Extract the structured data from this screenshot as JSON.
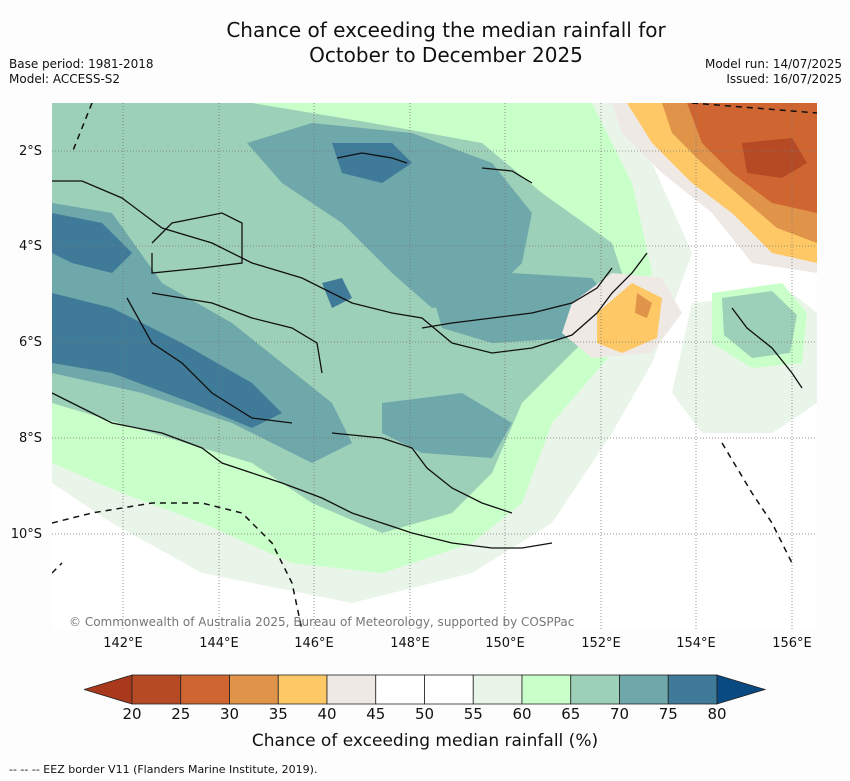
{
  "title_line1": "Chance of exceeding the median rainfall for",
  "title_line2": "October to December 2025",
  "base_period": "Base period: 1981-2018",
  "model": "Model: ACCESS-S2",
  "model_run": "Model run: 14/07/2025",
  "issued": "Issued: 16/07/2025",
  "lat_labels": [
    "2°S",
    "4°S",
    "6°S",
    "8°S",
    "10°S"
  ],
  "lon_labels": [
    "142°E",
    "144°E",
    "146°E",
    "148°E",
    "150°E",
    "152°E",
    "154°E",
    "156°E"
  ],
  "copyright": "© Commonwealth of Australia 2025, Bureau of Meteorology, supported by COSPPac",
  "colorbar": {
    "ticks": [
      "20",
      "25",
      "30",
      "35",
      "40",
      "45",
      "50",
      "55",
      "60",
      "65",
      "70",
      "75",
      "80"
    ],
    "label": "Chance of exceeding median rainfall (%)",
    "colors": [
      "#a8391d",
      "#b54a25",
      "#cf6531",
      "#e0944a",
      "#fdc865",
      "#efe9e6",
      "#ffffff",
      "#ffffff",
      "#e9f5e9",
      "#c9ffc8",
      "#9dd0b8",
      "#6ea8aa",
      "#3f7b98",
      "#0a4a82"
    ]
  },
  "footnote": "--  --  -- EEZ border V11 (Flanders Marine Institute, 2019)."
}
